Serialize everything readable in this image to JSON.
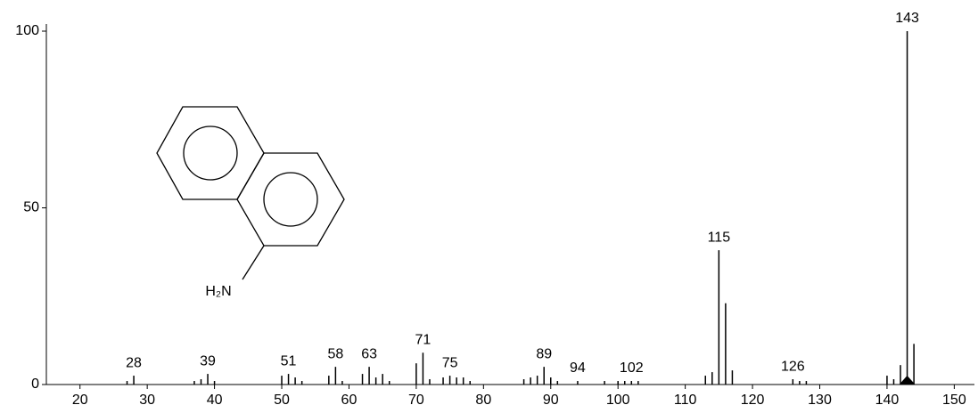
{
  "chart_data": {
    "type": "stem",
    "x": [
      27,
      28,
      37,
      38,
      39,
      40,
      50,
      51,
      52,
      53,
      57,
      58,
      59,
      62,
      63,
      64,
      65,
      66,
      70,
      71,
      72,
      74,
      75,
      76,
      77,
      78,
      86,
      87,
      88,
      89,
      90,
      91,
      94,
      98,
      100,
      101,
      102,
      103,
      113,
      114,
      115,
      116,
      117,
      126,
      127,
      128,
      140,
      141,
      142,
      143,
      144
    ],
    "values": [
      1,
      2.5,
      1,
      1.5,
      3,
      1,
      2.5,
      3,
      2,
      1,
      2.5,
      5,
      1,
      3,
      5,
      2,
      3,
      1,
      6,
      9,
      1.5,
      2,
      2.5,
      2,
      2,
      1,
      1.5,
      2,
      2.5,
      5,
      2,
      1,
      1,
      1,
      1,
      1,
      1,
      1,
      2.5,
      3.5,
      38,
      23,
      4,
      1.5,
      1,
      1,
      2.5,
      1.5,
      5.5,
      100,
      11.5
    ],
    "annotations": [
      28,
      39,
      51,
      58,
      63,
      71,
      75,
      89,
      94,
      102,
      115,
      126,
      143
    ],
    "marker_x": 143,
    "color": "#000000",
    "xlim": [
      15,
      153
    ],
    "ylim": [
      0,
      100
    ],
    "xticks": [
      20,
      30,
      40,
      50,
      60,
      70,
      80,
      90,
      100,
      110,
      120,
      130,
      140,
      150
    ],
    "yticks": [
      0,
      50,
      100
    ]
  },
  "structure_label": "H₂N"
}
